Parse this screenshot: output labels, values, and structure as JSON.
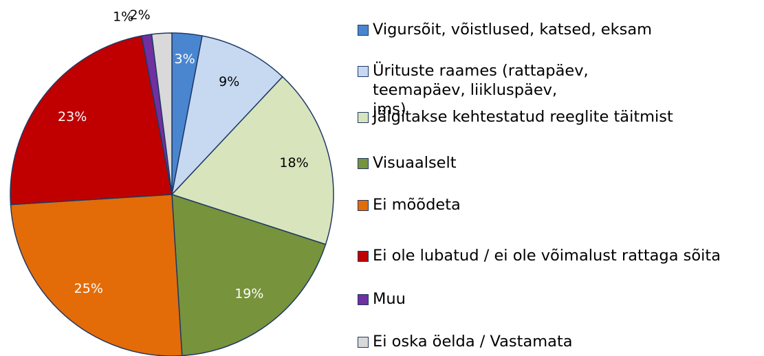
{
  "chart_data": {
    "type": "pie",
    "categories": [
      "Vigursõit, võistlused, katsed, eksam",
      "Ürituste raames (rattapäev, teemapäev, liikluspäev, jms)",
      "Jälgitakse kehtestatud reeglite täitmist",
      "Visuaalselt",
      "Ei mõõdeta",
      "Ei ole lubatud / ei ole võimalust rattaga sõita",
      "Muu",
      "Ei oska öelda / Vastamata"
    ],
    "values": [
      3,
      9,
      18,
      19,
      25,
      23,
      1,
      2
    ],
    "value_labels": [
      "3%",
      "9%",
      "18%",
      "19%",
      "25%",
      "23%",
      "1%",
      "2%"
    ],
    "colors": [
      "#4a86d0",
      "#c6d9f1",
      "#d8e4bc",
      "#77933c",
      "#e36c09",
      "#c00000",
      "#7030a0",
      "#d9d9d9"
    ],
    "legend": "right"
  }
}
